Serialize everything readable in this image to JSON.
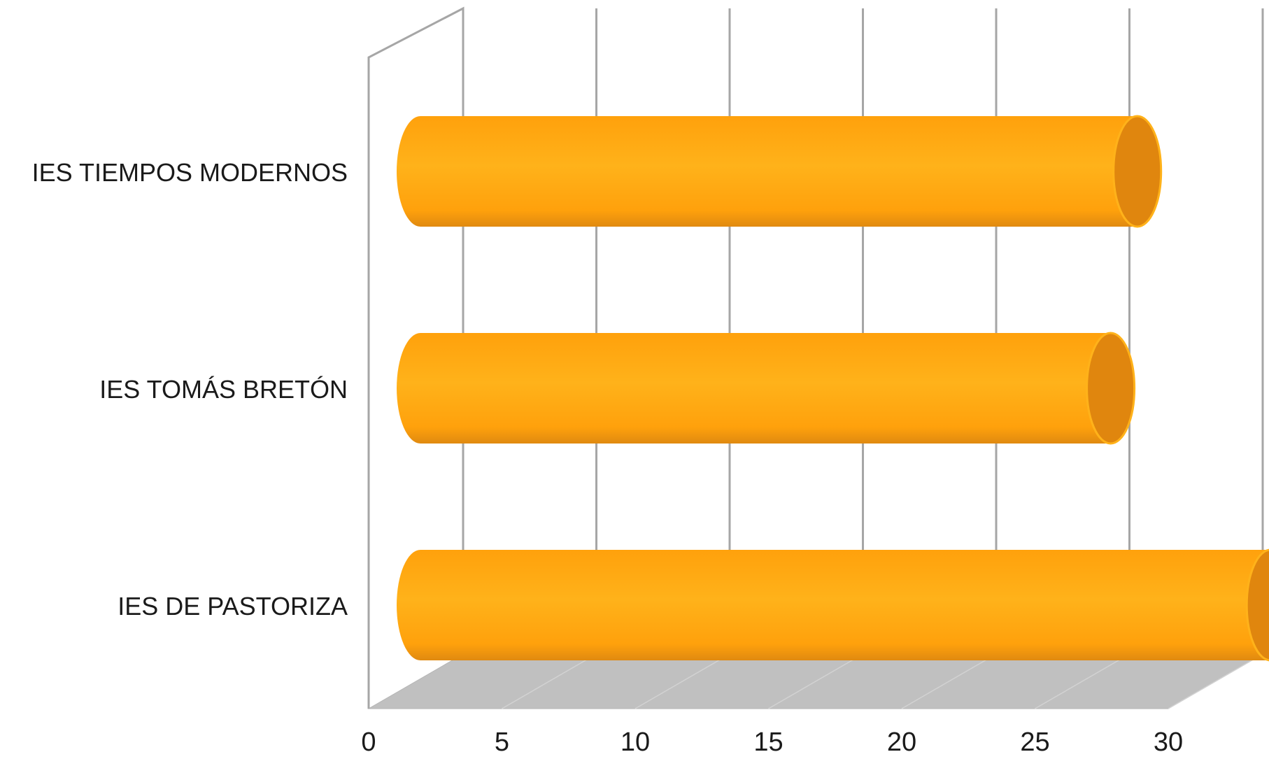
{
  "chart_data": {
    "type": "bar",
    "orientation": "horizontal",
    "style": "3d-cylinder",
    "categories": [
      "IES DE PASTORIZA",
      "IES TOMÁS BRETÓN",
      "IES TIEMPOS MODERNOS"
    ],
    "values": [
      32,
      26,
      27
    ],
    "title": "",
    "xlabel": "",
    "ylabel": "",
    "xlim": [
      0,
      30
    ],
    "xticks": [
      0,
      5,
      10,
      15,
      20,
      25,
      30
    ],
    "grid": true,
    "legend": "none",
    "colors": {
      "bar_light": "#ffb21a",
      "bar_mid": "#ffa10c",
      "bar_dark": "#e08a10",
      "bar_cap": "#e0860e",
      "gridline": "#a6a6a6",
      "floor": "#c0c0c0"
    }
  }
}
